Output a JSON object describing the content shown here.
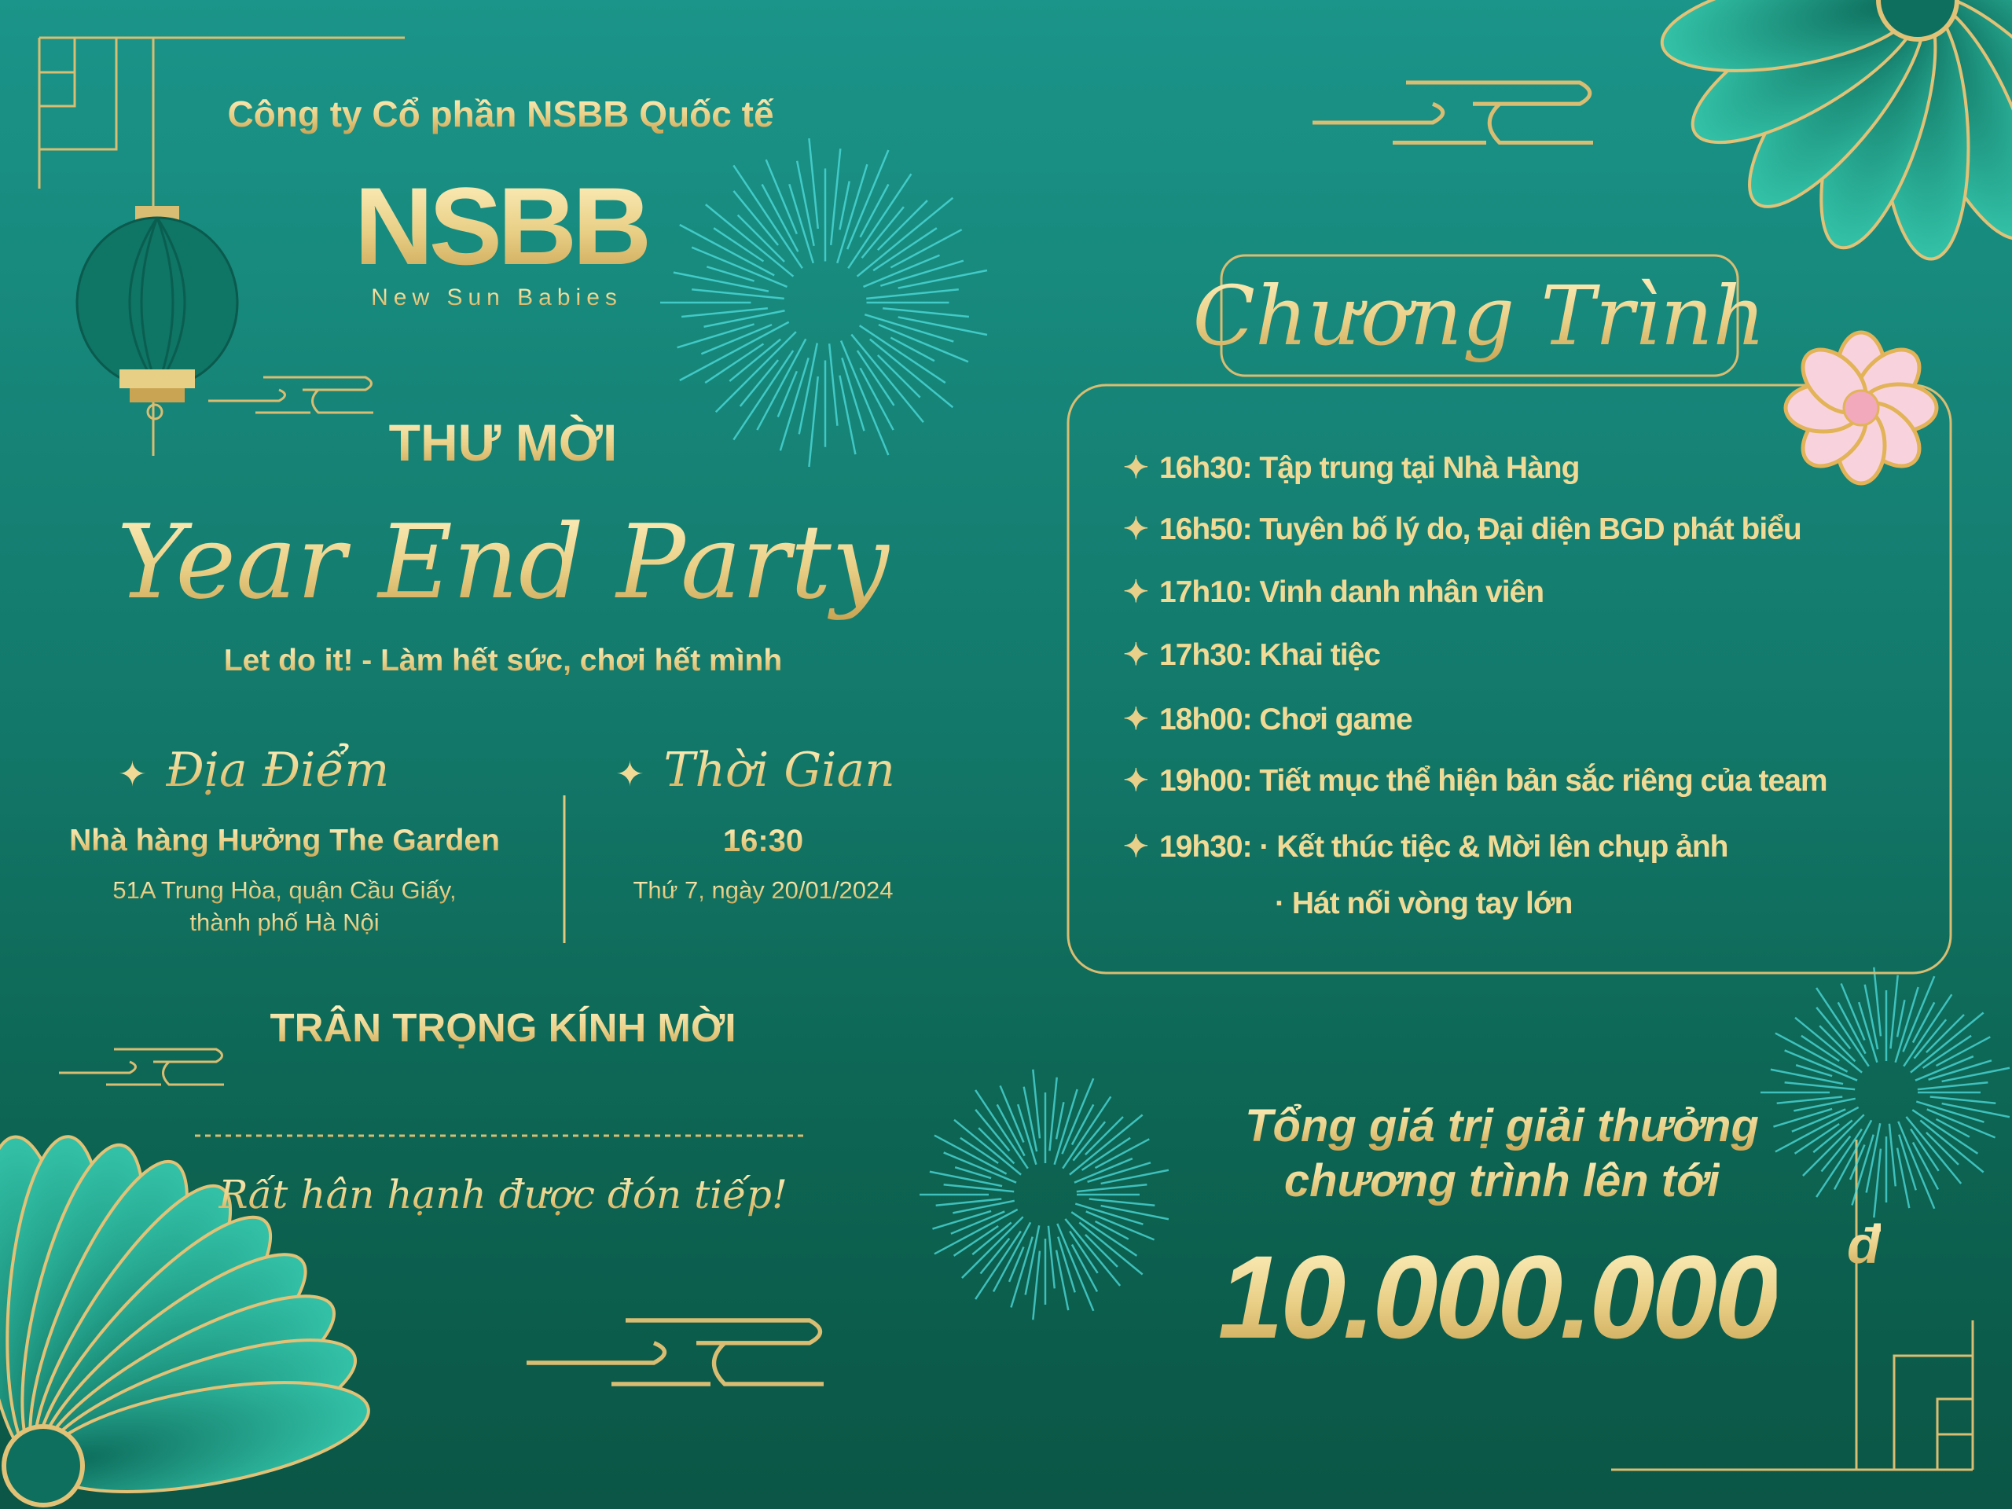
{
  "company": "Công ty Cổ phần NSBB Quốc tế",
  "logo": {
    "mark": "NSBB",
    "tagline": "New Sun Babies"
  },
  "invitation": {
    "heading": "THƯ MỜI",
    "event_title": "Year End Party",
    "slogan": "Let do it! - Làm hết sức, chơi hết mình"
  },
  "venue": {
    "label": "Địa Điểm",
    "name": "Nhà hàng Hưởng The Garden",
    "address_line1": "51A Trung Hòa, quận Cầu Giấy,",
    "address_line2": "thành phố Hà Nội"
  },
  "time": {
    "label": "Thời Gian",
    "hour": "16:30",
    "date": "Thứ 7, ngày 20/01/2024"
  },
  "closing": {
    "respect": "TRÂN TRỌNG KÍNH MỜI",
    "welcome": "Rất hân hạnh được đón tiếp!"
  },
  "program": {
    "title": "Chương Trình",
    "items": [
      {
        "text": "16h30: Tập trung tại Nhà Hàng"
      },
      {
        "text": "16h50: Tuyên bố lý do, Đại diện BGD phát biểu"
      },
      {
        "text": "17h10: Vinh danh nhân viên"
      },
      {
        "text": "17h30: Khai tiệc"
      },
      {
        "text": "18h00: Chơi game"
      },
      {
        "text": "19h00: Tiết mục thể hiện bản sắc riêng của team"
      },
      {
        "text": "19h30: · Kết thúc tiệc & Mời lên chụp ảnh"
      }
    ],
    "continuation": "· Hát nối vòng tay lớn"
  },
  "prize": {
    "line1": "Tổng giá trị giải thưởng",
    "line2": "chương trình lên tới",
    "amount": "10.000.000",
    "currency": "đ"
  },
  "colors": {
    "background_top": "#1b9489",
    "background_bottom": "#0b5646",
    "gold": "#e9cf86",
    "pink_flower": "#f6c9d6"
  },
  "icons": [
    "lantern-icon",
    "firework-icon",
    "flower-icon",
    "sparkle-bullet-icon",
    "cloud-ornament-icon"
  ]
}
